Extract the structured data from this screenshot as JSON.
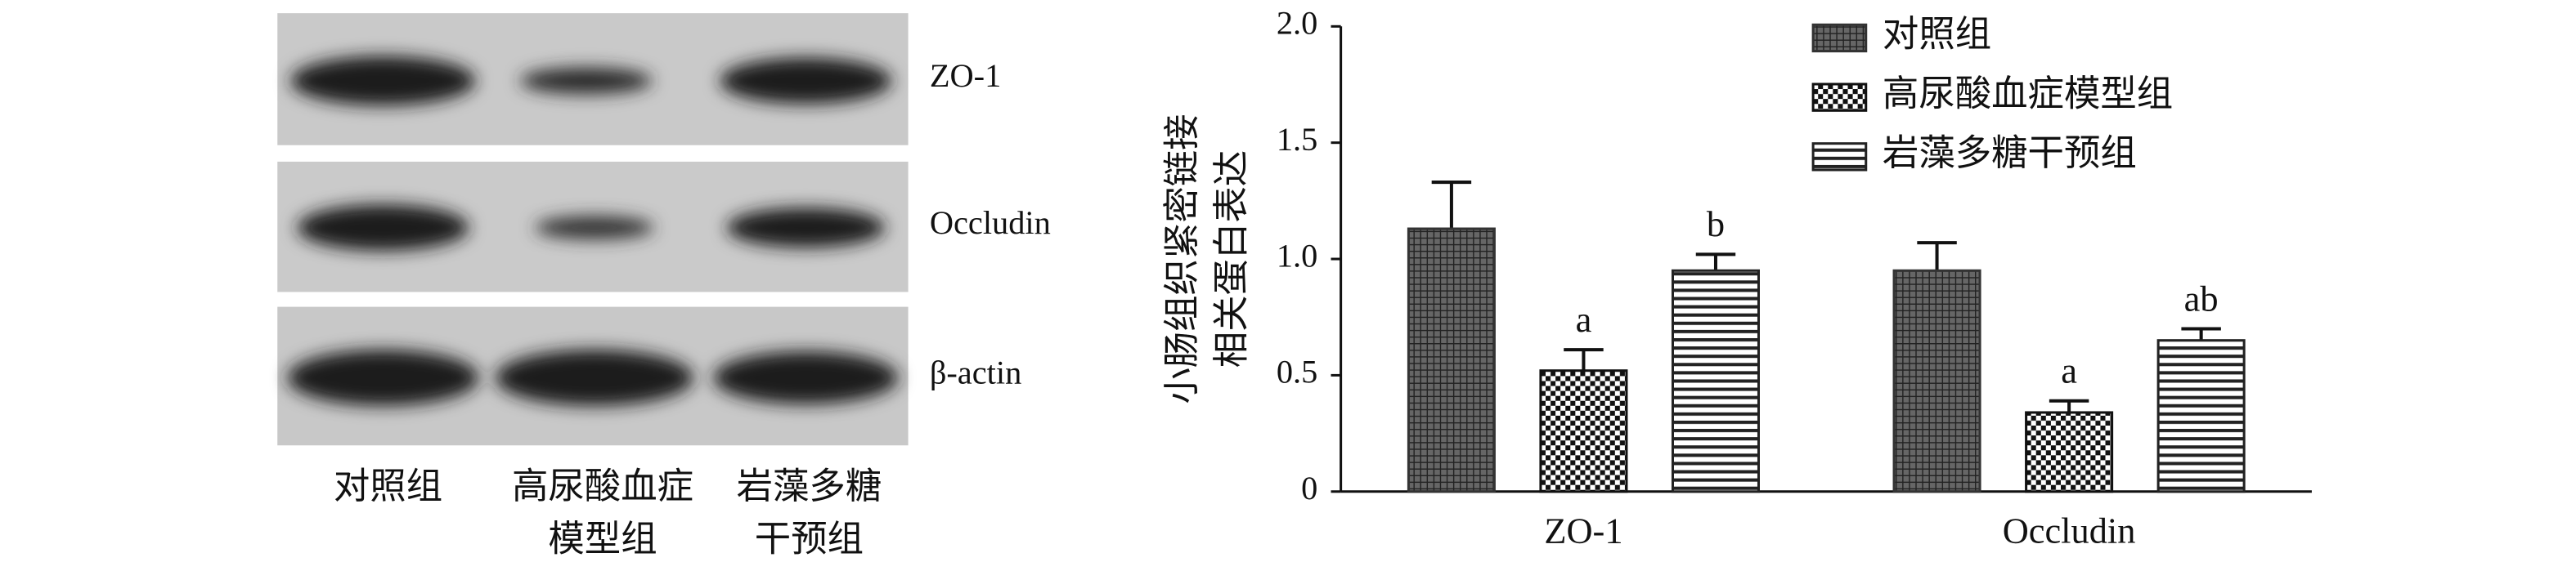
{
  "blot": {
    "bands": [
      "ZO-1",
      "Occludin",
      "β-actin"
    ],
    "groups": [
      [
        "对照组"
      ],
      [
        "高尿酸血症",
        "模型组"
      ],
      [
        "岩藻多糖",
        "干预组"
      ]
    ]
  },
  "chart_data": {
    "type": "bar",
    "ylabel": [
      "小肠组织紧密链接",
      "相关蛋白表达"
    ],
    "categories": [
      "ZO-1",
      "Occludin"
    ],
    "ylim": [
      0,
      2
    ],
    "yticks": [
      0,
      0.5,
      {
        "value": 1,
        "label": "1.0"
      },
      1.5,
      {
        "value": 2,
        "label": "2.0"
      }
    ],
    "series": [
      {
        "name": "对照组",
        "color": "#333333",
        "pattern": "grid",
        "values": [
          1.13,
          0.95
        ],
        "errors": [
          0.2,
          0.12
        ],
        "annotations": [
          null,
          null
        ]
      },
      {
        "name": "高尿酸血症模型组",
        "color": "#111111",
        "pattern": "check",
        "values": [
          0.52,
          0.34
        ],
        "errors": [
          0.09,
          0.05
        ],
        "annotations": [
          "a",
          "a"
        ]
      },
      {
        "name": "岩藻多糖干预组",
        "color": "#222222",
        "pattern": "hstripe",
        "values": [
          0.95,
          0.65
        ],
        "errors": [
          0.07,
          0.05
        ],
        "annotations": [
          "b",
          "ab"
        ]
      }
    ]
  }
}
